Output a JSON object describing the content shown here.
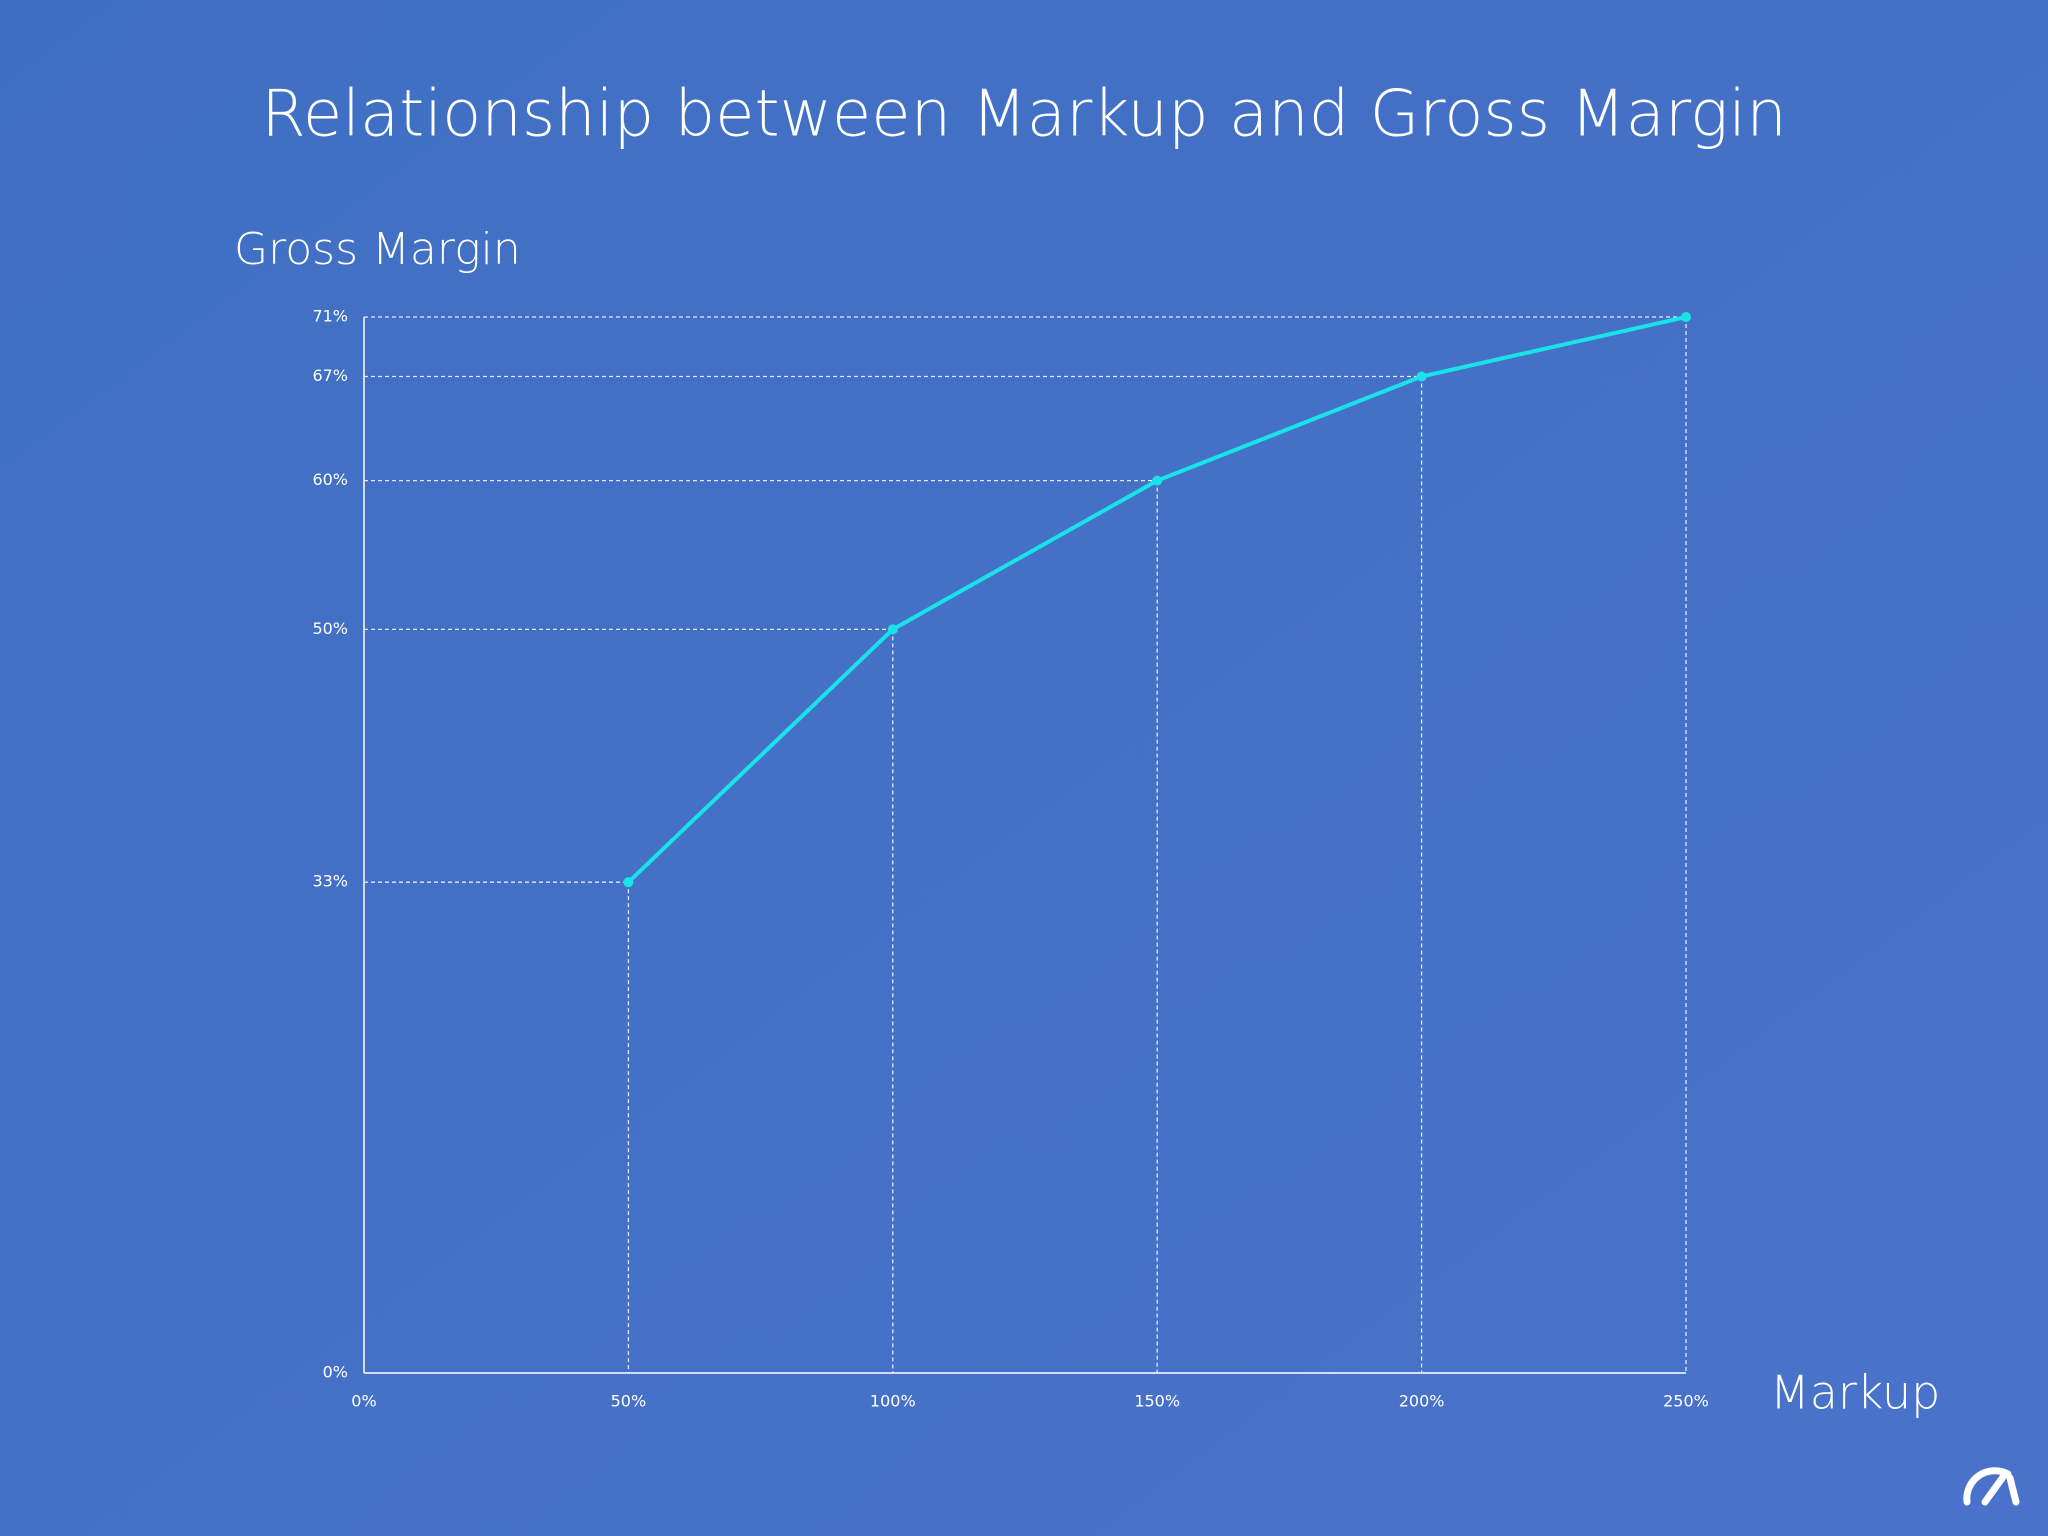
{
  "chart_data": {
    "type": "line",
    "title": "Relationship between Markup and Gross Margin",
    "y_label": "Gross Margin",
    "x_label": "Markup",
    "x": [
      50,
      100,
      150,
      200,
      250
    ],
    "series": [
      {
        "color": "#19e3e8",
        "values": [
          33,
          50,
          60,
          67,
          71
        ]
      }
    ],
    "xlim": [
      0,
      250
    ],
    "xticks": [
      {
        "value": 0,
        "label": "0%"
      },
      {
        "value": 50,
        "label": "50%"
      },
      {
        "value": 100,
        "label": "100%"
      },
      {
        "value": 150,
        "label": "150%"
      },
      {
        "value": 200,
        "label": "200%"
      },
      {
        "value": 250,
        "label": "250%"
      }
    ],
    "ylim": [
      0,
      71
    ],
    "yticks": [
      {
        "value": 0,
        "label": "0%"
      },
      {
        "value": 33,
        "label": "33%"
      },
      {
        "value": 50,
        "label": "50%"
      },
      {
        "value": 60,
        "label": "60%"
      },
      {
        "value": 67,
        "label": "67%"
      },
      {
        "value": 71,
        "label": "71%"
      }
    ],
    "drop_lines": true
  }
}
